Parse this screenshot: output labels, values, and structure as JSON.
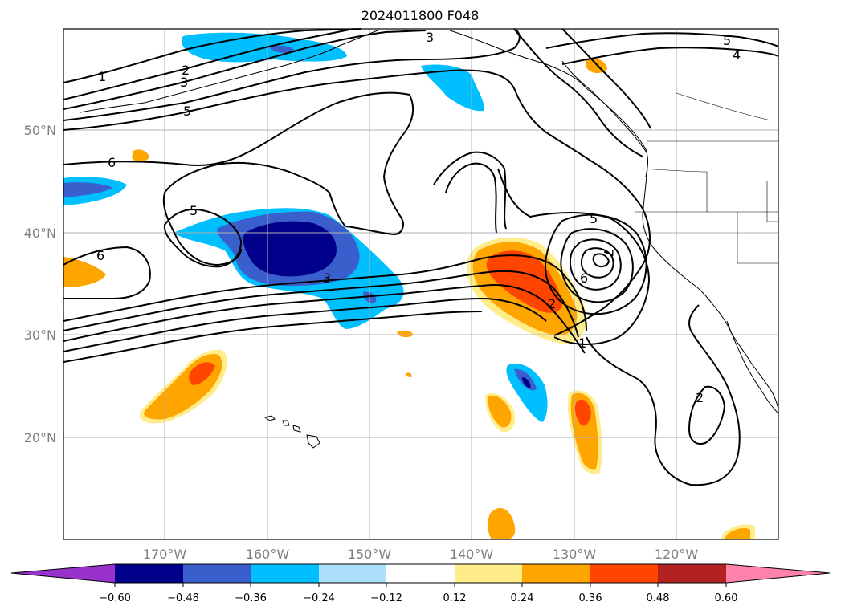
{
  "title": "2024011800 F048",
  "lat_labels": [
    "50°N",
    "40°N",
    "30°N",
    "20°N"
  ],
  "lon_labels": [
    "170°W",
    "160°W",
    "150°W",
    "140°W",
    "130°W",
    "120°W"
  ],
  "contour_labels": [
    "1",
    "2",
    "3",
    "5",
    "6",
    "5",
    "3",
    "6",
    "5",
    "6",
    "2",
    "1",
    "3",
    "5",
    "4",
    "2",
    "7"
  ],
  "colorbar": {
    "ticks": [
      "−0.60",
      "−0.48",
      "−0.36",
      "−0.24",
      "−0.12",
      "0.12",
      "0.24",
      "0.36",
      "0.48",
      "0.60"
    ],
    "colors": {
      "under": "#9932cc",
      "bins": [
        "#00008b",
        "#3a5fcd",
        "#00bfff",
        "#ace0fc",
        "#ffffff",
        "#ffec8b",
        "#ffa500",
        "#ff4500",
        "#b22222"
      ],
      "over": "#ff82ab"
    }
  },
  "fill_colors": {
    "neg_weak": "#00bfff",
    "neg_mid": "#3a5fcd",
    "neg_strong": "#00008b",
    "pos_weak": "#ffec8b",
    "pos_mid": "#ffa500",
    "pos_strong": "#ff4500"
  }
}
